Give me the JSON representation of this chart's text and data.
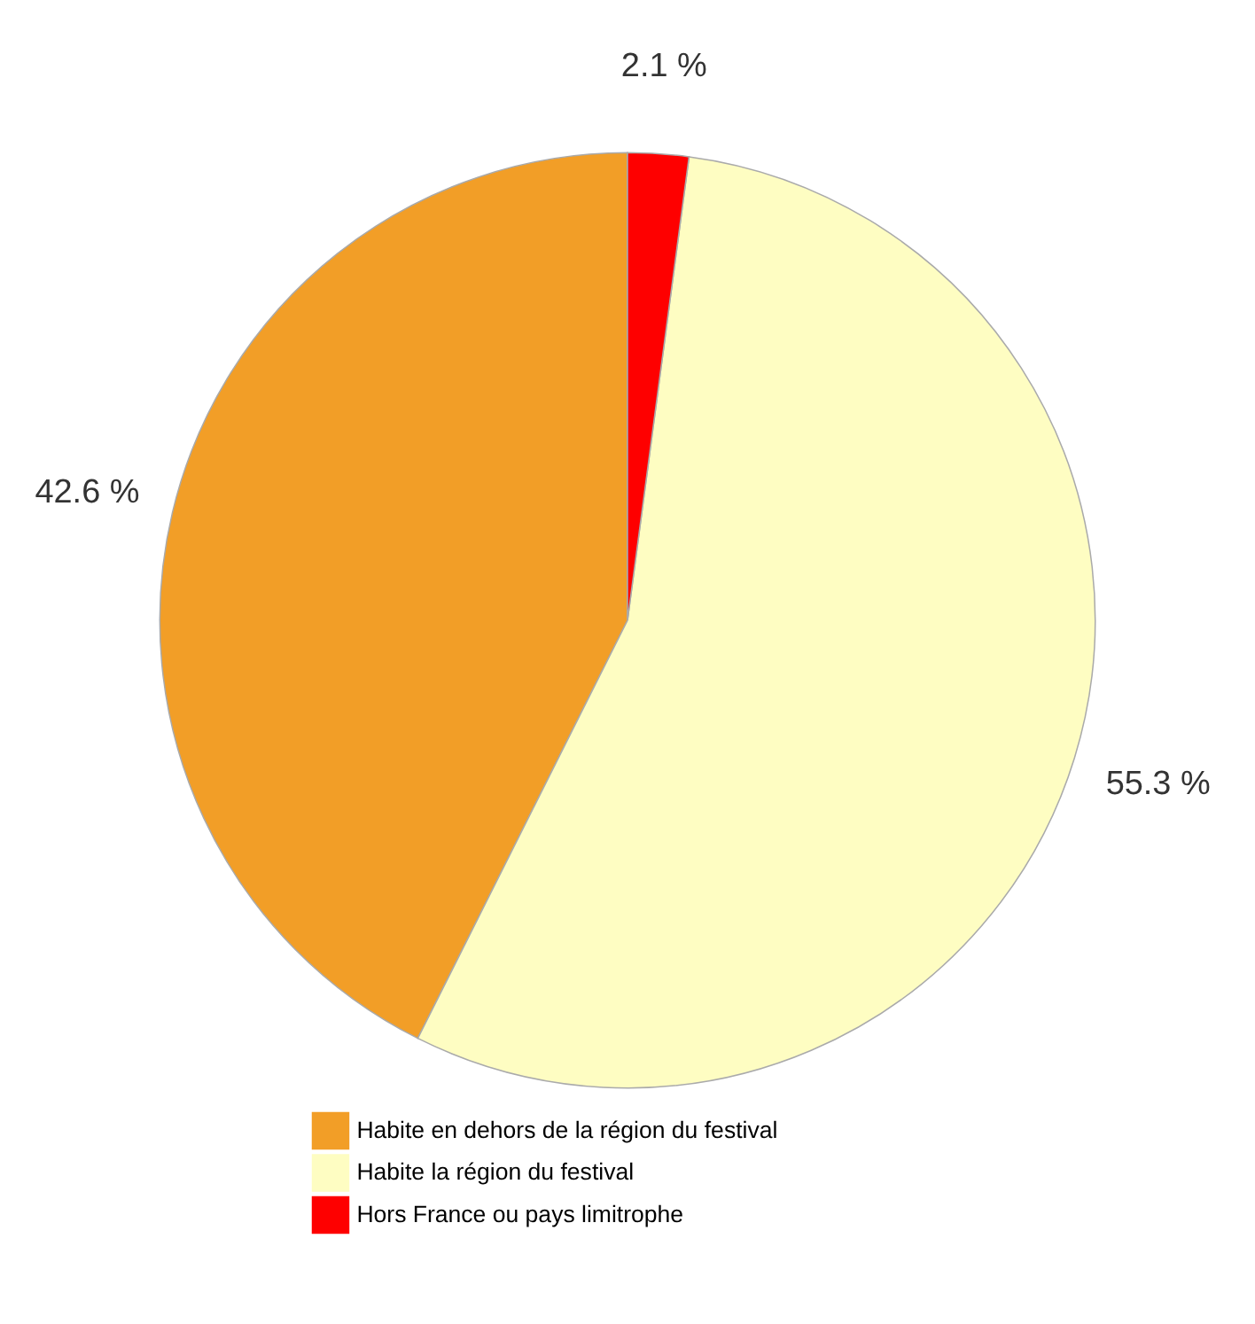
{
  "chart_data": {
    "type": "pie",
    "categories": [
      "Habite en dehors de la région du festival",
      "Habite la région du festival",
      "Hors France ou pays limitrophe"
    ],
    "values": [
      42.6,
      55.3,
      2.1
    ],
    "colors": [
      "#f29e27",
      "#fefdc2",
      "#fe0000"
    ],
    "value_labels": [
      "42.6 %",
      "55.3 %",
      "2.1 %"
    ],
    "legend": "bottom"
  }
}
